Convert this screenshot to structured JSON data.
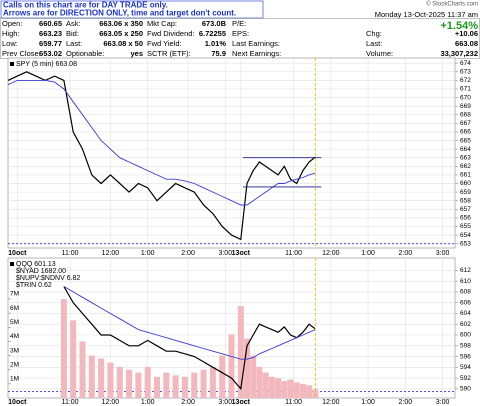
{
  "notes": [
    "Calls on this chart are for DAY TRADE only.",
    "Arrows are for DIRECTION ONLY, time and target don't count."
  ],
  "watermark": "© StockCharts.com",
  "datetime": "Monday 13-Oct-2025 11:37 am",
  "change_pct": "+1.54%",
  "quote_rows": [
    [
      "Open:",
      "660.65",
      "Ask:",
      "663.06 x 350",
      "Mkt Cap:",
      "673.0B",
      "P/E:"
    ],
    [
      "High:",
      "663.23",
      "Bid:",
      "663.05 x 250",
      "Fwd Dividend:",
      "6.72255",
      "EPS:"
    ],
    [
      "Low:",
      "659.77",
      "Last:",
      "663.08 x 50",
      "Fwd Yield:",
      "1.01%",
      "Last Earnings:"
    ],
    [
      "Prev Close:",
      "653.02",
      "Optionable:",
      "yes",
      "SCTR (ETF):",
      "75.9",
      "Next Earnings:"
    ]
  ],
  "quote_right": [
    {
      "label": "Chg:",
      "value": "+10.06"
    },
    {
      "label": "Last:",
      "value": "663.08"
    },
    {
      "label": "Volume:",
      "value": "33,307,232"
    }
  ],
  "chart_data": [
    {
      "type": "line",
      "x": [
        0,
        3,
        6,
        9,
        12,
        15,
        18,
        21,
        24,
        27,
        30,
        33,
        36,
        39,
        42,
        45,
        48,
        51,
        54,
        57,
        60,
        63,
        66,
        69,
        72,
        75,
        77,
        79,
        81,
        83,
        85,
        87,
        89,
        91,
        93,
        95,
        97,
        99
      ],
      "xlim": [
        0,
        144
      ],
      "xticks": [
        {
          "value": 3,
          "label": "10oct"
        },
        {
          "value": 20,
          "label": "11:00"
        },
        {
          "value": 33,
          "label": "12:00"
        },
        {
          "value": 45,
          "label": "1:00"
        },
        {
          "value": 58,
          "label": "2:00"
        },
        {
          "value": 70,
          "label": "3:00"
        },
        {
          "value": 75,
          "label": "13oct"
        },
        {
          "value": 92,
          "label": "11:00"
        },
        {
          "value": 104,
          "label": "12:00"
        },
        {
          "value": 116,
          "label": "1:00"
        },
        {
          "value": 128,
          "label": "2:00"
        },
        {
          "value": 140,
          "label": "3:00"
        }
      ],
      "ylim": [
        652.5,
        674.6
      ],
      "yticks": [
        653,
        654,
        655,
        656,
        657,
        658,
        659,
        660,
        661,
        662,
        663,
        664,
        665,
        666,
        667,
        668,
        669,
        670,
        671,
        672,
        673,
        674
      ],
      "grid": true,
      "series": [
        {
          "name": "SPY (5 min) 663.08",
          "color": "#000000",
          "values": [
            672,
            672.5,
            673,
            672.5,
            672,
            672.5,
            672,
            666,
            664,
            661,
            660,
            661,
            660,
            659,
            660,
            659.5,
            658,
            659,
            660,
            659.5,
            659,
            657.5,
            656.5,
            655,
            654,
            653.5,
            660,
            661.5,
            662.5,
            662,
            661.5,
            661,
            662,
            660.5,
            660,
            661.5,
            662.5,
            663.08
          ]
        },
        {
          "color": "#3a3ad0",
          "values": [
            671.5,
            672,
            672,
            672,
            672,
            671.8,
            671,
            669.5,
            668,
            666.5,
            665,
            664,
            663,
            662.5,
            662,
            661.5,
            661,
            660.5,
            660.5,
            660.3,
            660,
            659.5,
            659,
            658.5,
            658,
            657.5,
            657.5,
            658,
            658.5,
            659,
            659.5,
            660,
            660,
            660.3,
            660.5,
            660.7,
            661,
            661.2
          ]
        }
      ],
      "hlines": [
        663,
        659.6
      ],
      "hline_color": "#1a1a8a",
      "reference_line": 653,
      "reference_color": "#3a3ad0"
    },
    {
      "type": "combo",
      "x": [
        0,
        3,
        6,
        9,
        12,
        15,
        18,
        21,
        24,
        27,
        30,
        33,
        36,
        39,
        42,
        45,
        48,
        51,
        54,
        57,
        60,
        63,
        66,
        69,
        72,
        75,
        77,
        79,
        81,
        83,
        85,
        87,
        89,
        91,
        93,
        95,
        97,
        99
      ],
      "xlim": [
        0,
        144
      ],
      "xticks": [
        {
          "value": 3,
          "label": "10oct"
        },
        {
          "value": 20,
          "label": "11:00"
        },
        {
          "value": 33,
          "label": "12:00"
        },
        {
          "value": 45,
          "label": "1:00"
        },
        {
          "value": 58,
          "label": "2:00"
        },
        {
          "value": 70,
          "label": "3:00"
        },
        {
          "value": 75,
          "label": "13oct"
        },
        {
          "value": 92,
          "label": "11:00"
        },
        {
          "value": 104,
          "label": "12:00"
        },
        {
          "value": 116,
          "label": "1:00"
        },
        {
          "value": 128,
          "label": "2:00"
        },
        {
          "value": 140,
          "label": "3:00"
        }
      ],
      "ylim": [
        0,
        9900000
      ],
      "yticks": [
        {
          "value": 1000000,
          "label": "1M"
        },
        {
          "value": 2000000,
          "label": "2M"
        },
        {
          "value": 3000000,
          "label": "3M"
        },
        {
          "value": 4000000,
          "label": "4M"
        },
        {
          "value": 5000000,
          "label": "5M"
        },
        {
          "value": 6000000,
          "label": "6M"
        },
        {
          "value": 7000000,
          "label": "7M"
        }
      ],
      "y2lim": [
        588.3,
        614.3
      ],
      "y2ticks": [
        590,
        592,
        594,
        596,
        598,
        600,
        602,
        604,
        606,
        608,
        610,
        612
      ],
      "grid": true,
      "legend_extra": [
        "$NYAD 1682.00",
        "$NUPV:$NDNV 6.82",
        "$TRIN 0.62"
      ],
      "series": [
        {
          "type": "bar",
          "color": "#f2b8bd",
          "values": [
            null,
            null,
            null,
            null,
            null,
            null,
            7000000,
            5500000,
            4000000,
            3000000,
            2800000,
            2500000,
            2200000,
            2000000,
            1800000,
            2200000,
            1500000,
            1800000,
            1600000,
            1500000,
            1800000,
            2000000,
            2200000,
            3000000,
            4500000,
            6500000,
            4200000,
            3000000,
            2200000,
            1800000,
            1500000,
            1400000,
            1200000,
            1300000,
            1100000,
            1000000,
            900000,
            600000
          ]
        },
        {
          "name": "QQQ 601.13",
          "type": "line",
          "axis": "y2",
          "color": "#000000",
          "values": [
            null,
            null,
            null,
            null,
            null,
            null,
            609,
            606,
            604,
            602,
            600,
            600,
            599,
            598,
            598,
            599,
            598,
            597,
            597,
            596.5,
            596,
            595,
            594,
            593,
            592,
            590,
            598,
            600,
            602,
            601.5,
            601,
            600.5,
            601.5,
            600,
            599.5,
            600.5,
            602,
            601.13
          ]
        },
        {
          "type": "line",
          "axis": "y2",
          "color": "#3a3ad0",
          "values": [
            null,
            null,
            null,
            null,
            null,
            null,
            609,
            608,
            607,
            606,
            605,
            604,
            603,
            602,
            601,
            600.5,
            600,
            599.5,
            599,
            598.5,
            598,
            597.5,
            597,
            596.5,
            596,
            595.5,
            595.5,
            595.8,
            596.5,
            597,
            597.5,
            598,
            598.5,
            599,
            599.5,
            600,
            600.5,
            601
          ]
        }
      ],
      "reference_line": 589.5,
      "reference_color": "#3a3ad0"
    }
  ]
}
